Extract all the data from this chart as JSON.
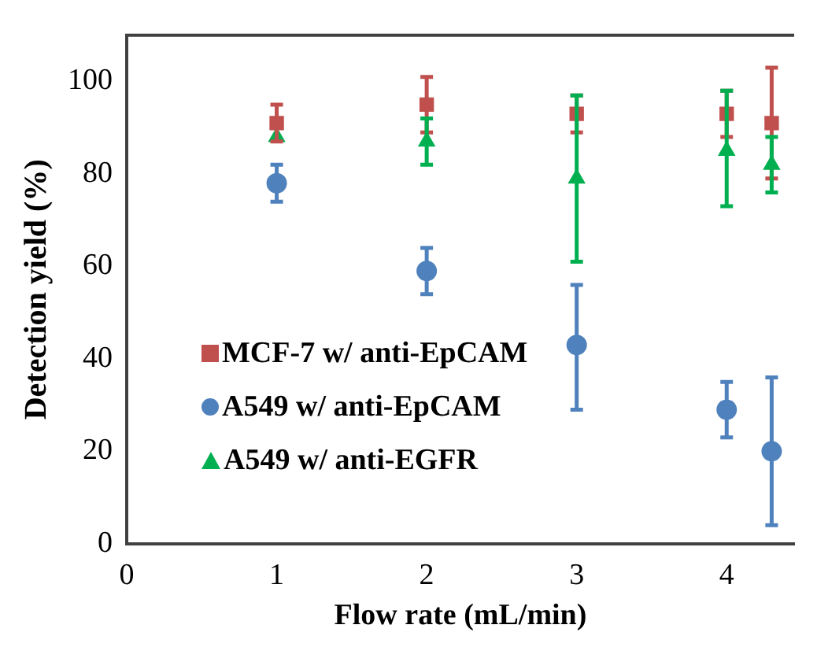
{
  "chart_data": {
    "type": "scatter",
    "xlabel": "Flow rate (mL/min)",
    "ylabel": "Detection yield (%)",
    "x": [
      1,
      2,
      3,
      4,
      4.3
    ],
    "xlim": [
      0,
      4.45
    ],
    "xticks": [
      0,
      1,
      2,
      3,
      4
    ],
    "ylim": [
      0,
      110
    ],
    "yticks": [
      0,
      20,
      40,
      60,
      80,
      100
    ],
    "grid": false,
    "legend": "bottom left",
    "series": [
      {
        "name": "MCF-7 w/ anti-EpCAM",
        "color": "#c0504d",
        "marker": "square",
        "values": [
          91,
          95,
          93,
          93,
          91
        ],
        "errors": [
          4,
          6,
          4,
          5,
          [
            79,
            103
          ]
        ]
      },
      {
        "name": "A549 w/ anti-EpCAM",
        "color": "#4f81bd",
        "marker": "circle",
        "values": [
          78,
          59,
          43,
          29,
          20
        ],
        "errors": [
          4,
          5,
          [
            29,
            56
          ],
          6,
          16
        ]
      },
      {
        "name": "A549 w/ anti-EGFR",
        "color": "#00b050",
        "marker": "triangle",
        "values": [
          88,
          87,
          79,
          85,
          82
        ],
        "errors": [
          null,
          5,
          18,
          [
            73,
            98
          ],
          6
        ]
      }
    ]
  }
}
